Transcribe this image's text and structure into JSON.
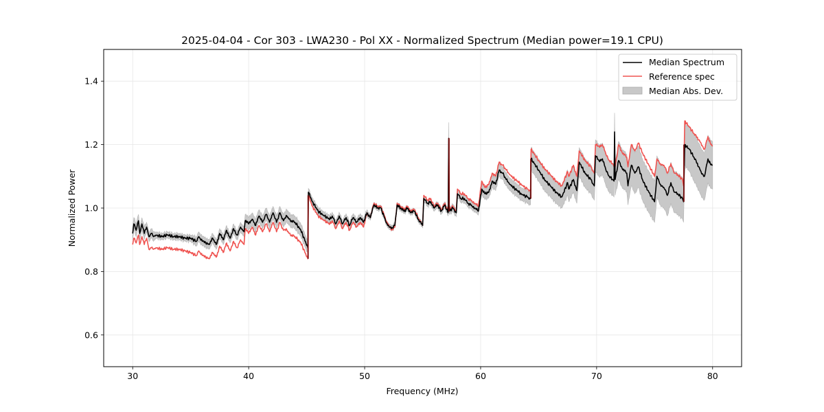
{
  "chart_data": {
    "type": "line",
    "title": "2025-04-04 - Cor 303 - LWA230 - Pol XX - Normalized Spectrum (Median power=19.1 CPU)",
    "xlabel": "Frequency (MHz)",
    "ylabel": "Normalized Power",
    "xlim": [
      27.5,
      82.5
    ],
    "ylim": [
      0.5,
      1.5
    ],
    "xticks": [
      30,
      40,
      50,
      60,
      70,
      80
    ],
    "xtick_labels": [
      "30",
      "40",
      "50",
      "60",
      "70",
      "80"
    ],
    "yticks": [
      0.6,
      0.8,
      1.0,
      1.2,
      1.4
    ],
    "ytick_labels": [
      "0.6",
      "0.8",
      "1.0",
      "1.2",
      "1.4"
    ],
    "grid": true,
    "legend": {
      "placement": "top-right",
      "entries": [
        {
          "label": "Median Spectrum",
          "kind": "line",
          "color": "#000000"
        },
        {
          "label": "Reference spec",
          "kind": "line",
          "color": "#ef5350"
        },
        {
          "label": "Median Abs. Dev.",
          "kind": "patch",
          "color": "#c8c8c8"
        }
      ]
    },
    "series": [
      {
        "name": "Median Spectrum",
        "color": "#000000",
        "x": [
          30.0,
          30.1,
          30.3,
          30.5,
          30.6,
          30.8,
          31.0,
          31.2,
          31.4,
          31.6,
          31.8,
          32.0,
          32.5,
          33.0,
          33.5,
          34.0,
          34.5,
          35.0,
          35.5,
          35.7,
          36.0,
          36.3,
          36.6,
          36.9,
          37.2,
          37.5,
          37.8,
          38.1,
          38.4,
          38.7,
          39.0,
          39.3,
          39.6,
          39.7,
          40.0,
          40.3,
          40.6,
          40.9,
          41.2,
          41.5,
          41.8,
          42.1,
          42.4,
          42.7,
          43.0,
          43.3,
          43.6,
          44.0,
          44.5,
          45.1,
          45.15,
          45.5,
          46.0,
          46.5,
          47.0,
          47.2,
          47.5,
          47.8,
          48.1,
          48.4,
          48.7,
          49.0,
          49.3,
          49.6,
          49.9,
          50.2,
          50.5,
          50.8,
          51.1,
          51.4,
          51.7,
          52.0,
          52.3,
          52.6,
          52.8,
          53.1,
          53.4,
          53.7,
          54.0,
          54.3,
          54.6,
          55.0,
          55.1,
          55.4,
          55.7,
          56.0,
          56.3,
          56.6,
          56.9,
          57.2,
          57.25,
          57.3,
          57.6,
          57.9,
          58.0,
          58.3,
          58.6,
          58.9,
          59.2,
          59.5,
          59.8,
          60.1,
          60.4,
          60.7,
          61.0,
          61.3,
          61.6,
          61.9,
          62.2,
          62.5,
          63.0,
          63.5,
          64.0,
          64.3,
          64.35,
          65.0,
          65.5,
          66.0,
          66.5,
          67.0,
          67.5,
          67.6,
          68.0,
          68.3,
          68.5,
          69.0,
          69.5,
          69.8,
          69.9,
          70.2,
          70.5,
          70.8,
          71.1,
          71.4,
          71.5,
          71.55,
          71.6,
          71.9,
          72.2,
          72.6,
          72.7,
          73.0,
          73.3,
          73.6,
          74.0,
          74.5,
          75.0,
          75.2,
          75.5,
          75.8,
          76.1,
          76.4,
          76.7,
          77.0,
          77.4,
          77.5,
          77.6,
          78.0,
          78.4,
          78.8,
          79.0,
          79.3,
          79.6,
          79.8,
          80.0
        ],
        "y": [
          0.92,
          0.95,
          0.93,
          0.96,
          0.92,
          0.95,
          0.92,
          0.94,
          0.91,
          0.92,
          0.91,
          0.915,
          0.91,
          0.915,
          0.91,
          0.91,
          0.905,
          0.905,
          0.895,
          0.91,
          0.895,
          0.89,
          0.885,
          0.905,
          0.885,
          0.92,
          0.9,
          0.93,
          0.905,
          0.935,
          0.915,
          0.94,
          0.925,
          0.96,
          0.95,
          0.965,
          0.945,
          0.975,
          0.955,
          0.98,
          0.955,
          0.985,
          0.955,
          0.985,
          0.96,
          0.975,
          0.96,
          0.955,
          0.93,
          0.875,
          1.05,
          1.02,
          0.99,
          0.975,
          0.965,
          0.975,
          0.95,
          0.975,
          0.95,
          0.97,
          0.945,
          0.97,
          0.955,
          0.97,
          0.955,
          0.985,
          0.97,
          1.01,
          1.0,
          1.0,
          0.97,
          0.945,
          0.935,
          0.945,
          1.01,
          1.0,
          0.99,
          1.0,
          0.985,
          0.99,
          0.965,
          0.945,
          1.03,
          1.015,
          1.02,
          1.0,
          1.01,
          0.99,
          1.01,
          0.985,
          1.22,
          0.99,
          1.0,
          0.985,
          1.045,
          1.03,
          1.03,
          1.015,
          1.01,
          1.0,
          0.99,
          1.06,
          1.045,
          1.05,
          1.085,
          1.075,
          1.12,
          1.11,
          1.09,
          1.075,
          1.06,
          1.045,
          1.035,
          1.03,
          1.155,
          1.12,
          1.09,
          1.07,
          1.05,
          1.035,
          1.08,
          1.06,
          1.09,
          1.055,
          1.145,
          1.11,
          1.09,
          1.07,
          1.165,
          1.15,
          1.155,
          1.12,
          1.1,
          1.09,
          1.085,
          1.24,
          1.09,
          1.15,
          1.125,
          1.11,
          1.07,
          1.135,
          1.11,
          1.13,
          1.085,
          1.05,
          1.02,
          1.1,
          1.075,
          1.065,
          1.04,
          1.08,
          1.05,
          1.045,
          1.03,
          1.02,
          1.2,
          1.185,
          1.16,
          1.13,
          1.115,
          1.1,
          1.155,
          1.14,
          1.135
        ],
        "mad": [
          0.02,
          0.02,
          0.02,
          0.02,
          0.02,
          0.02,
          0.02,
          0.015,
          0.015,
          0.015,
          0.015,
          0.01,
          0.01,
          0.01,
          0.01,
          0.01,
          0.01,
          0.01,
          0.015,
          0.015,
          0.015,
          0.015,
          0.015,
          0.015,
          0.015,
          0.015,
          0.015,
          0.015,
          0.015,
          0.015,
          0.015,
          0.015,
          0.015,
          0.02,
          0.02,
          0.02,
          0.02,
          0.02,
          0.02,
          0.02,
          0.02,
          0.02,
          0.02,
          0.02,
          0.02,
          0.02,
          0.02,
          0.02,
          0.02,
          0.02,
          0.012,
          0.012,
          0.012,
          0.012,
          0.012,
          0.012,
          0.012,
          0.012,
          0.012,
          0.012,
          0.012,
          0.012,
          0.012,
          0.012,
          0.012,
          0.01,
          0.008,
          0.008,
          0.008,
          0.008,
          0.008,
          0.008,
          0.008,
          0.008,
          0.008,
          0.008,
          0.008,
          0.008,
          0.008,
          0.008,
          0.008,
          0.008,
          0.01,
          0.01,
          0.01,
          0.01,
          0.01,
          0.01,
          0.01,
          0.01,
          0.05,
          0.01,
          0.012,
          0.012,
          0.012,
          0.012,
          0.012,
          0.012,
          0.012,
          0.012,
          0.012,
          0.018,
          0.018,
          0.018,
          0.02,
          0.02,
          0.02,
          0.02,
          0.02,
          0.02,
          0.02,
          0.02,
          0.02,
          0.02,
          0.035,
          0.035,
          0.035,
          0.035,
          0.035,
          0.035,
          0.04,
          0.04,
          0.04,
          0.04,
          0.045,
          0.045,
          0.045,
          0.045,
          0.05,
          0.05,
          0.05,
          0.05,
          0.05,
          0.05,
          0.05,
          0.06,
          0.05,
          0.06,
          0.06,
          0.06,
          0.06,
          0.065,
          0.065,
          0.065,
          0.065,
          0.065,
          0.065,
          0.065,
          0.065,
          0.065,
          0.065,
          0.065,
          0.065,
          0.065,
          0.065,
          0.065,
          0.065,
          0.07,
          0.075,
          0.075,
          0.075,
          0.075,
          0.075,
          0.075,
          0.075,
          0.075
        ]
      },
      {
        "name": "Reference spec",
        "color": "#ef5350",
        "x": [
          30.0,
          30.1,
          30.3,
          30.5,
          30.6,
          30.8,
          31.0,
          31.2,
          31.4,
          31.6,
          31.8,
          32.0,
          32.5,
          33.0,
          33.5,
          34.0,
          34.5,
          35.0,
          35.5,
          35.7,
          36.0,
          36.3,
          36.6,
          36.9,
          37.2,
          37.5,
          37.8,
          38.1,
          38.4,
          38.7,
          39.0,
          39.3,
          39.6,
          39.7,
          40.0,
          40.3,
          40.6,
          40.9,
          41.2,
          41.5,
          41.8,
          42.1,
          42.4,
          42.7,
          43.0,
          43.3,
          43.6,
          44.0,
          44.5,
          45.1,
          45.15,
          45.5,
          46.0,
          46.5,
          47.0,
          47.2,
          47.5,
          47.8,
          48.1,
          48.4,
          48.7,
          49.0,
          49.3,
          49.6,
          49.9,
          50.2,
          50.5,
          50.8,
          51.1,
          51.4,
          51.7,
          52.0,
          52.3,
          52.6,
          52.8,
          53.1,
          53.4,
          53.7,
          54.0,
          54.3,
          54.6,
          55.0,
          55.1,
          55.4,
          55.7,
          56.0,
          56.3,
          56.6,
          56.9,
          57.2,
          57.25,
          57.3,
          57.6,
          57.9,
          58.0,
          58.3,
          58.6,
          58.9,
          59.2,
          59.5,
          59.8,
          60.1,
          60.4,
          60.7,
          61.0,
          61.3,
          61.6,
          61.9,
          62.2,
          62.5,
          63.0,
          63.5,
          64.0,
          64.3,
          64.35,
          65.0,
          65.5,
          66.0,
          66.5,
          67.0,
          67.5,
          67.6,
          68.0,
          68.3,
          68.5,
          69.0,
          69.5,
          69.8,
          69.9,
          70.2,
          70.5,
          70.8,
          71.1,
          71.4,
          71.5,
          71.55,
          71.6,
          71.9,
          72.2,
          72.6,
          72.7,
          73.0,
          73.3,
          73.6,
          74.0,
          74.5,
          75.0,
          75.2,
          75.5,
          75.8,
          76.1,
          76.4,
          76.7,
          77.0,
          77.4,
          77.5,
          77.6,
          78.0,
          78.4,
          78.8,
          79.0,
          79.3,
          79.6,
          79.8,
          80.0
        ],
        "y": [
          0.885,
          0.905,
          0.89,
          0.915,
          0.885,
          0.91,
          0.885,
          0.905,
          0.87,
          0.875,
          0.87,
          0.875,
          0.87,
          0.875,
          0.87,
          0.87,
          0.865,
          0.86,
          0.85,
          0.865,
          0.85,
          0.845,
          0.84,
          0.86,
          0.845,
          0.88,
          0.86,
          0.89,
          0.865,
          0.895,
          0.875,
          0.9,
          0.885,
          0.935,
          0.92,
          0.94,
          0.915,
          0.945,
          0.925,
          0.95,
          0.925,
          0.955,
          0.925,
          0.955,
          0.93,
          0.93,
          0.915,
          0.91,
          0.89,
          0.84,
          1.04,
          1.005,
          0.975,
          0.96,
          0.95,
          0.96,
          0.935,
          0.96,
          0.935,
          0.955,
          0.93,
          0.955,
          0.94,
          0.955,
          0.94,
          0.985,
          0.97,
          1.015,
          1.005,
          1.005,
          0.975,
          0.95,
          0.93,
          0.94,
          1.015,
          1.005,
          0.995,
          1.005,
          0.99,
          0.995,
          0.97,
          0.945,
          1.04,
          1.025,
          1.03,
          1.005,
          1.015,
          0.995,
          1.015,
          0.99,
          1.22,
          0.995,
          1.005,
          0.99,
          1.06,
          1.045,
          1.045,
          1.03,
          1.025,
          1.015,
          1.005,
          1.085,
          1.065,
          1.075,
          1.11,
          1.1,
          1.145,
          1.135,
          1.12,
          1.105,
          1.09,
          1.075,
          1.06,
          1.055,
          1.185,
          1.15,
          1.125,
          1.105,
          1.085,
          1.07,
          1.115,
          1.1,
          1.135,
          1.1,
          1.18,
          1.15,
          1.13,
          1.11,
          1.2,
          1.195,
          1.2,
          1.17,
          1.15,
          1.14,
          1.13,
          1.13,
          1.13,
          1.2,
          1.175,
          1.16,
          1.13,
          1.2,
          1.18,
          1.205,
          1.17,
          1.135,
          1.1,
          1.155,
          1.14,
          1.135,
          1.11,
          1.14,
          1.11,
          1.105,
          1.09,
          1.07,
          1.275,
          1.255,
          1.235,
          1.215,
          1.205,
          1.185,
          1.225,
          1.205,
          1.195
        ]
      }
    ]
  }
}
